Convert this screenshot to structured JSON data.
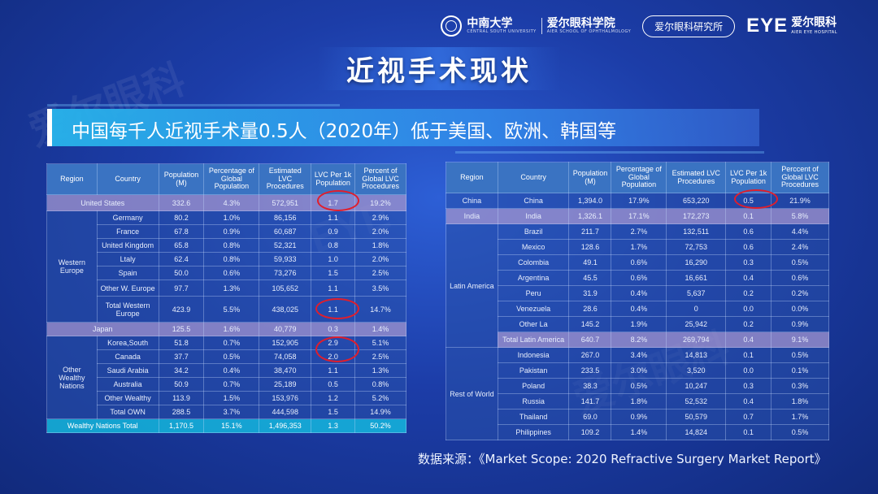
{
  "header": {
    "school_name": "中南大学",
    "school_sub": "CENTRAL SOUTH UNIVERSITY",
    "school_college": "爱尔眼科学院",
    "school_college_sub": "AIER SCHOOL OF OPHTHALMOLOGY",
    "institute_label": "爱尔眼科研究所",
    "brand_mark": "EYE",
    "brand_cn": "爱尔眼科",
    "brand_en": "AIER EYE HOSPITAL"
  },
  "title": "近视手术现状",
  "banner": "中国每千人近视手术量0.5人（2020年）低于美国、欧洲、韩国等",
  "left_table": {
    "headers": [
      "Region",
      "Country",
      "Population (M)",
      "Percentage of Global Population",
      "Estimated LVC Procedures",
      "LVC Per 1k Population",
      "Percent of Global LVC Procedures"
    ],
    "rows": [
      {
        "region": "United States",
        "country": "",
        "pop": "332.6",
        "pct": "4.3%",
        "proc": "572,951",
        "per1k": "1.7",
        "glob": "19.2%"
      },
      {
        "region": "Western Europe",
        "country": "Germany",
        "pop": "80.2",
        "pct": "1.0%",
        "proc": "86,156",
        "per1k": "1.1",
        "glob": "2.9%"
      },
      {
        "country": "France",
        "pop": "67.8",
        "pct": "0.9%",
        "proc": "60,687",
        "per1k": "0.9",
        "glob": "2.0%"
      },
      {
        "country": "United Kingdom",
        "pop": "65.8",
        "pct": "0.8%",
        "proc": "52,321",
        "per1k": "0.8",
        "glob": "1.8%"
      },
      {
        "country": "Ltaly",
        "pop": "62.4",
        "pct": "0.8%",
        "proc": "59,933",
        "per1k": "1.0",
        "glob": "2.0%"
      },
      {
        "country": "Spain",
        "pop": "50.0",
        "pct": "0.6%",
        "proc": "73,276",
        "per1k": "1.5",
        "glob": "2.5%"
      },
      {
        "country": "Other W. Europe",
        "pop": "97.7",
        "pct": "1.3%",
        "proc": "105,652",
        "per1k": "1.1",
        "glob": "3.5%"
      },
      {
        "country": "Total Western Europe",
        "pop": "423.9",
        "pct": "5.5%",
        "proc": "438,025",
        "per1k": "1.1",
        "glob": "14.7%"
      },
      {
        "region": "Japan",
        "pop": "125.5",
        "pct": "1.6%",
        "proc": "40,779",
        "per1k": "0.3",
        "glob": "1.4%"
      },
      {
        "region": "Other Wealthy Nations",
        "country": "Korea,South",
        "pop": "51.8",
        "pct": "0.7%",
        "proc": "152,905",
        "per1k": "2.9",
        "glob": "5.1%"
      },
      {
        "country": "Canada",
        "pop": "37.7",
        "pct": "0.5%",
        "proc": "74,058",
        "per1k": "2.0",
        "glob": "2.5%"
      },
      {
        "country": "Saudi Arabia",
        "pop": "34.2",
        "pct": "0.4%",
        "proc": "38,470",
        "per1k": "1.1",
        "glob": "1.3%"
      },
      {
        "country": "Australia",
        "pop": "50.9",
        "pct": "0.7%",
        "proc": "25,189",
        "per1k": "0.5",
        "glob": "0.8%"
      },
      {
        "country": "Other Wealthy",
        "pop": "113.9",
        "pct": "1.5%",
        "proc": "153,976",
        "per1k": "1.2",
        "glob": "5.2%"
      },
      {
        "country": "Total OWN",
        "pop": "288.5",
        "pct": "3.7%",
        "proc": "444,598",
        "per1k": "1.5",
        "glob": "14.9%"
      },
      {
        "region": "Wealthy Nations Total",
        "pop": "1,170.5",
        "pct": "15.1%",
        "proc": "1,496,353",
        "per1k": "1.3",
        "glob": "50.2%"
      }
    ]
  },
  "right_table": {
    "headers": [
      "Region",
      "Country",
      "Population (M)",
      "Percentage of Global Population",
      "Estimated LVC Procedures",
      "LVC Per 1k Population",
      "Perccent of Global LVC Procedures"
    ],
    "rows": [
      {
        "region": "China",
        "country": "China",
        "pop": "1,394.0",
        "pct": "17.9%",
        "proc": "653,220",
        "per1k": "0.5",
        "glob": "21.9%"
      },
      {
        "region": "India",
        "country": "India",
        "pop": "1,326.1",
        "pct": "17.1%",
        "proc": "172,273",
        "per1k": "0.1",
        "glob": "5.8%"
      },
      {
        "region": "Latin America",
        "country": "Brazil",
        "pop": "211.7",
        "pct": "2.7%",
        "proc": "132,511",
        "per1k": "0.6",
        "glob": "4.4%"
      },
      {
        "country": "Mexico",
        "pop": "128.6",
        "pct": "1.7%",
        "proc": "72,753",
        "per1k": "0.6",
        "glob": "2.4%"
      },
      {
        "country": "Colombia",
        "pop": "49.1",
        "pct": "0.6%",
        "proc": "16,290",
        "per1k": "0.3",
        "glob": "0.5%"
      },
      {
        "country": "Argentina",
        "pop": "45.5",
        "pct": "0.6%",
        "proc": "16,661",
        "per1k": "0.4",
        "glob": "0.6%"
      },
      {
        "country": "Peru",
        "pop": "31.9",
        "pct": "0.4%",
        "proc": "5,637",
        "per1k": "0.2",
        "glob": "0.2%"
      },
      {
        "country": "Venezuela",
        "pop": "28.6",
        "pct": "0.4%",
        "proc": "0",
        "per1k": "0.0",
        "glob": "0.0%"
      },
      {
        "country": "Other La",
        "pop": "145.2",
        "pct": "1.9%",
        "proc": "25,942",
        "per1k": "0.2",
        "glob": "0.9%"
      },
      {
        "country": "Total Latin America",
        "pop": "640.7",
        "pct": "8.2%",
        "proc": "269,794",
        "per1k": "0.4",
        "glob": "9.1%"
      },
      {
        "region": "Rest of World",
        "country": "Indonesia",
        "pop": "267.0",
        "pct": "3.4%",
        "proc": "14,813",
        "per1k": "0.1",
        "glob": "0.5%"
      },
      {
        "country": "Pakistan",
        "pop": "233.5",
        "pct": "3.0%",
        "proc": "3,520",
        "per1k": "0.0",
        "glob": "0.1%"
      },
      {
        "country": "Poland",
        "pop": "38.3",
        "pct": "0.5%",
        "proc": "10,247",
        "per1k": "0.3",
        "glob": "0.3%"
      },
      {
        "country": "Russia",
        "pop": "141.7",
        "pct": "1.8%",
        "proc": "52,532",
        "per1k": "0.4",
        "glob": "1.8%"
      },
      {
        "country": "Thailand",
        "pop": "69.0",
        "pct": "0.9%",
        "proc": "50,579",
        "per1k": "0.7",
        "glob": "1.7%"
      },
      {
        "country": "Philippines",
        "pop": "109.2",
        "pct": "1.4%",
        "proc": "14,824",
        "per1k": "0.1",
        "glob": "0.5%"
      }
    ]
  },
  "source": "数据来源：《Market Scope: 2020 Refractive Surgery Market Report》",
  "colors": {
    "highlight_ring": "#e01e2c",
    "banner": "#28b4eb",
    "table_header": "#3a73c2",
    "row_highlight": "#9b91cd",
    "row_footer": "#14c8e6"
  }
}
